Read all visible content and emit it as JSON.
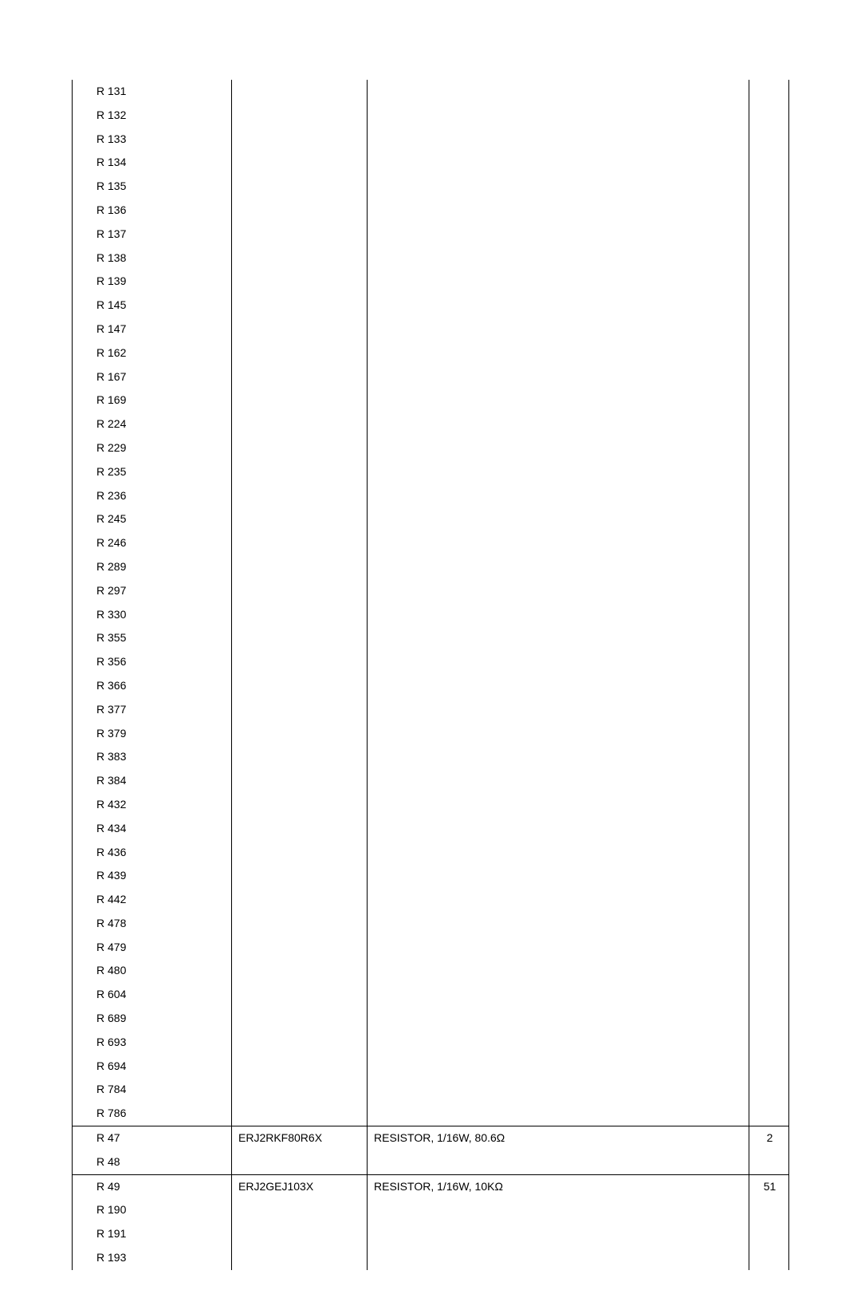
{
  "table": {
    "columns": {
      "ref_width": 200,
      "part_width": 170,
      "qty_width": 50
    },
    "groups": [
      {
        "part_number": "",
        "description": "",
        "qty": "",
        "refs": [
          "R 131",
          "R 132",
          "R 133",
          "R 134",
          "R 135",
          "R 136",
          "R 137",
          "R 138",
          "R 139",
          "R 145",
          "R 147",
          "R 162",
          "R 167",
          "R 169",
          "R 224",
          "R 229",
          "R 235",
          "R 236",
          "R 245",
          "R 246",
          "R 289",
          "R 297",
          "R 330",
          "R 355",
          "R 356",
          "R 366",
          "R 377",
          "R 379",
          "R 383",
          "R 384",
          "R 432",
          "R 434",
          "R 436",
          "R 439",
          "R 442",
          "R 478",
          "R 479",
          "R 480",
          "R 604",
          "R 689",
          "R 693",
          "R 694",
          "R 784",
          "R 786"
        ],
        "is_continuation": true
      },
      {
        "part_number": "ERJ2RKF80R6X",
        "description": "RESISTOR, 1/16W, 80.6Ω",
        "qty": "2",
        "refs": [
          "R 47",
          "R 48"
        ],
        "is_continuation": false
      },
      {
        "part_number": "ERJ2GEJ103X",
        "description": "RESISTOR, 1/16W, 10KΩ",
        "qty": "51",
        "refs": [
          "R 49",
          "R 190",
          "R 191",
          "R 193"
        ],
        "is_continuation": false
      }
    ]
  },
  "colors": {
    "text": "#000000",
    "border": "#000000",
    "background": "#ffffff"
  },
  "font": {
    "family": "Arial",
    "size": 14
  }
}
